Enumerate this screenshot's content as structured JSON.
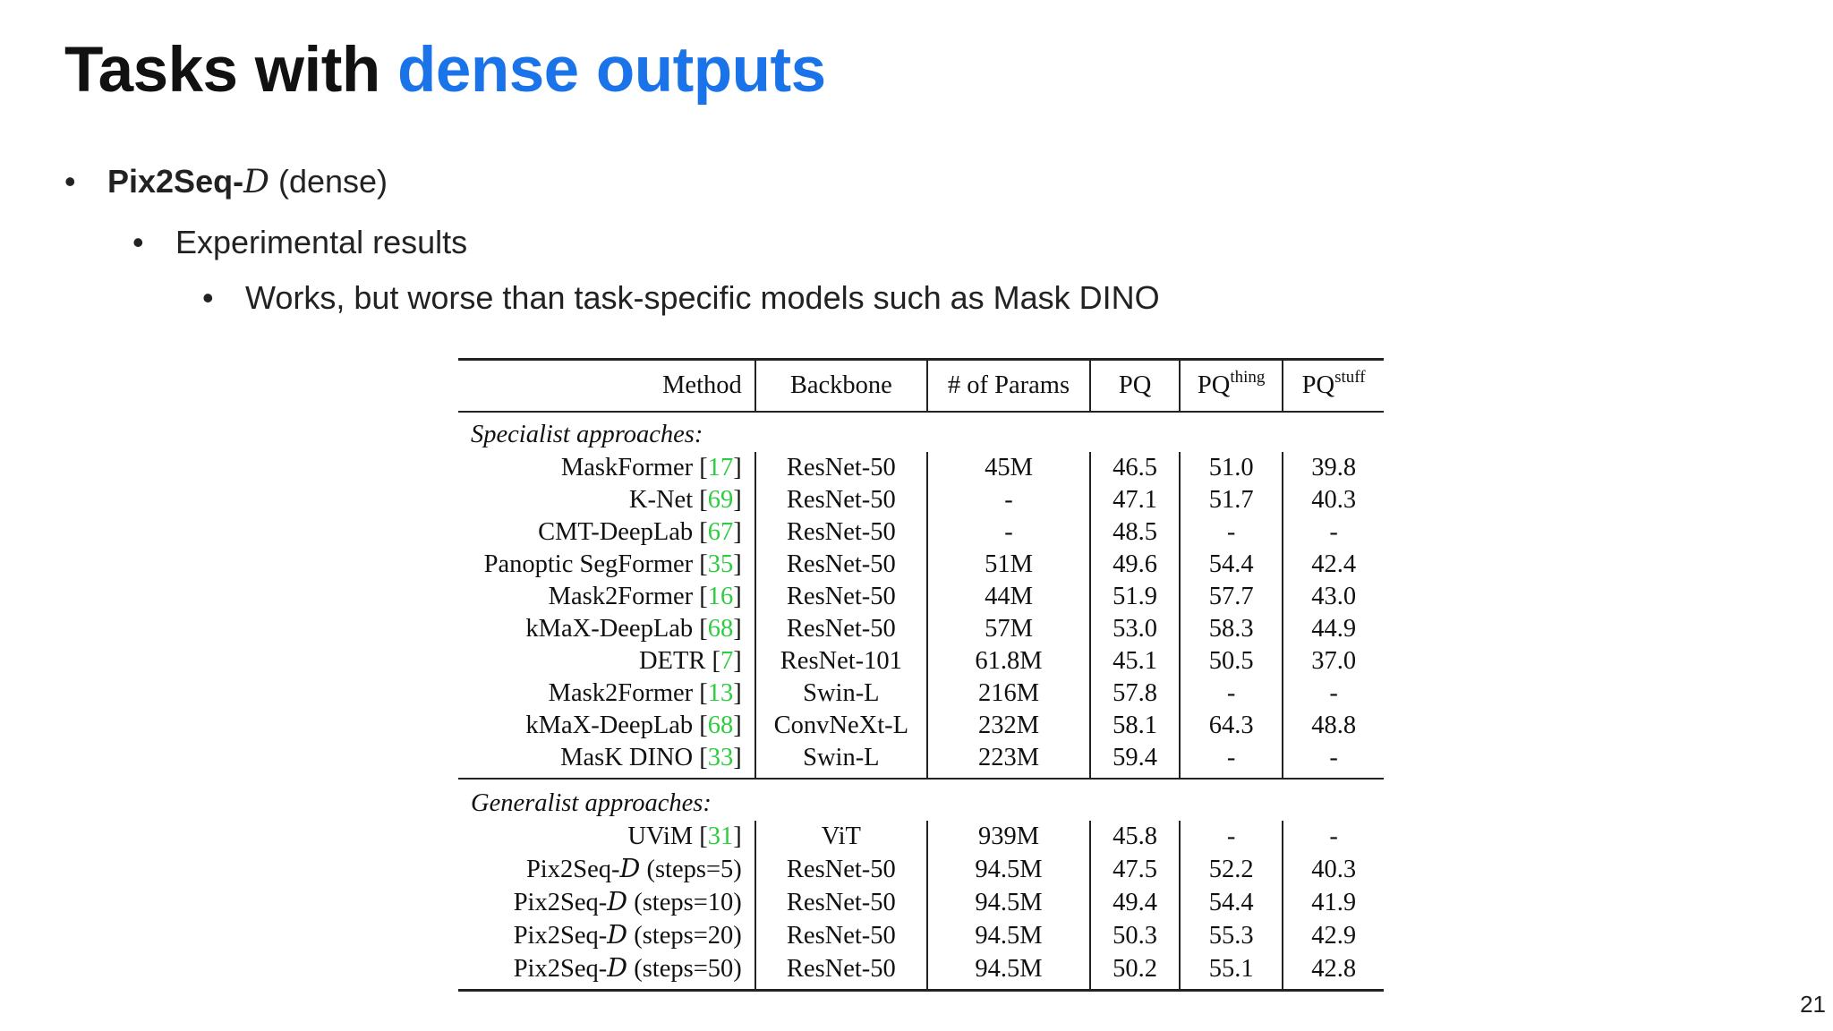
{
  "title": {
    "plain": "Tasks with ",
    "accent": "dense outputs"
  },
  "bullets": {
    "b1_bold": "Pix2Seq-",
    "b1_script": "D",
    "b1_rest": " (dense)",
    "b2": "Experimental results",
    "b3": "Works, but worse than task-specific models such as Mask DINO"
  },
  "table": {
    "headers": {
      "method": "Method",
      "backbone": "Backbone",
      "params": "# of Params",
      "pq": "PQ",
      "pq_thing_base": "PQ",
      "pq_thing_sup": "thing",
      "pq_stuff_base": "PQ",
      "pq_stuff_sup": "stuff"
    },
    "specialist_label": "Specialist approaches:",
    "generalist_label": "Generalist approaches:",
    "specialist_rows": [
      {
        "name": "MaskFormer",
        "cite": "17",
        "backbone": "ResNet-50",
        "params": "45M",
        "pq": "46.5",
        "pq_thing": "51.0",
        "pq_stuff": "39.8"
      },
      {
        "name": "K-Net",
        "cite": "69",
        "backbone": "ResNet-50",
        "params": "-",
        "pq": "47.1",
        "pq_thing": "51.7",
        "pq_stuff": "40.3"
      },
      {
        "name": "CMT-DeepLab",
        "cite": "67",
        "backbone": "ResNet-50",
        "params": "-",
        "pq": "48.5",
        "pq_thing": "-",
        "pq_stuff": "-"
      },
      {
        "name": "Panoptic SegFormer",
        "cite": "35",
        "backbone": "ResNet-50",
        "params": "51M",
        "pq": "49.6",
        "pq_thing": "54.4",
        "pq_stuff": "42.4"
      },
      {
        "name": "Mask2Former",
        "cite": "16",
        "backbone": "ResNet-50",
        "params": "44M",
        "pq": "51.9",
        "pq_thing": "57.7",
        "pq_stuff": "43.0"
      },
      {
        "name": "kMaX-DeepLab",
        "cite": "68",
        "backbone": "ResNet-50",
        "params": "57M",
        "pq": "53.0",
        "pq_thing": "58.3",
        "pq_stuff": "44.9"
      },
      {
        "name": "DETR",
        "cite": "7",
        "backbone": "ResNet-101",
        "params": "61.8M",
        "pq": "45.1",
        "pq_thing": "50.5",
        "pq_stuff": "37.0"
      },
      {
        "name": "Mask2Former",
        "cite": "13",
        "backbone": "Swin-L",
        "params": "216M",
        "pq": "57.8",
        "pq_thing": "-",
        "pq_stuff": "-"
      },
      {
        "name": "kMaX-DeepLab",
        "cite": "68",
        "backbone": "ConvNeXt-L",
        "params": "232M",
        "pq": "58.1",
        "pq_thing": "64.3",
        "pq_stuff": "48.8"
      },
      {
        "name": "MasK DINO",
        "cite": "33",
        "backbone": "Swin-L",
        "params": "223M",
        "pq": "59.4",
        "pq_thing": "-",
        "pq_stuff": "-"
      }
    ],
    "generalist_rows": [
      {
        "name": "UViM",
        "cite": "31",
        "backbone": "ViT",
        "params": "939M",
        "pq": "45.8",
        "pq_thing": "-",
        "pq_stuff": "-"
      },
      {
        "name": "Pix2Seq-",
        "script": "D",
        "suffix": " (steps=5)",
        "backbone": "ResNet-50",
        "params": "94.5M",
        "pq": "47.5",
        "pq_thing": "52.2",
        "pq_stuff": "40.3"
      },
      {
        "name": "Pix2Seq-",
        "script": "D",
        "suffix": " (steps=10)",
        "backbone": "ResNet-50",
        "params": "94.5M",
        "pq": "49.4",
        "pq_thing": "54.4",
        "pq_stuff": "41.9"
      },
      {
        "name": "Pix2Seq-",
        "script": "D",
        "suffix": " (steps=20)",
        "backbone": "ResNet-50",
        "params": "94.5M",
        "pq": "50.3",
        "pq_thing": "55.3",
        "pq_stuff": "42.9"
      },
      {
        "name": "Pix2Seq-",
        "script": "D",
        "suffix": " (steps=50)",
        "backbone": "ResNet-50",
        "params": "94.5M",
        "pq": "50.2",
        "pq_thing": "55.1",
        "pq_stuff": "42.8"
      }
    ]
  },
  "page_number": "21",
  "colors": {
    "accent": "#1a73e8",
    "citation": "#2ecc40"
  }
}
